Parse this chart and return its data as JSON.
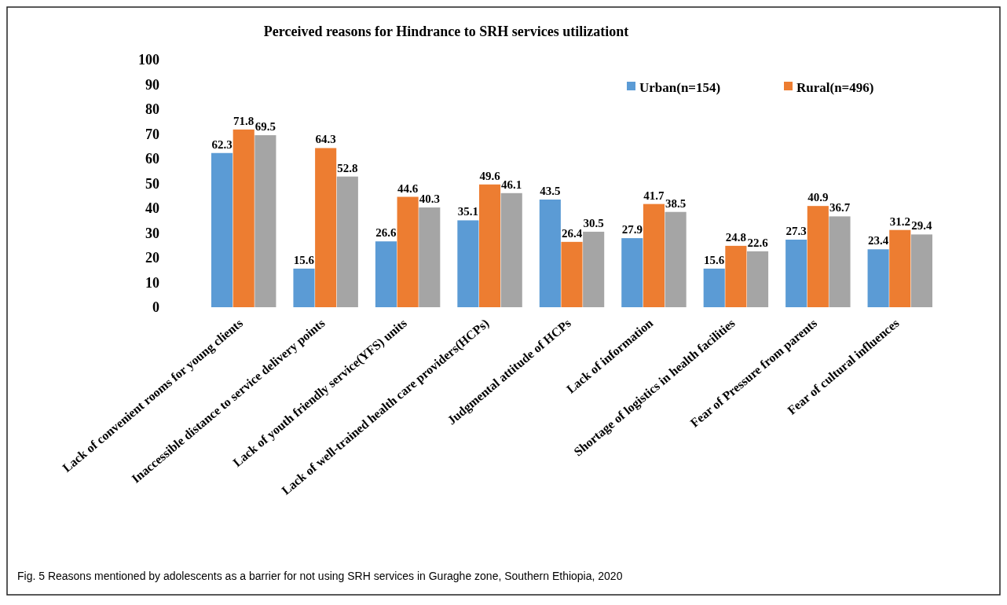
{
  "chart_data": {
    "type": "bar",
    "title": "Perceived reasons for Hindrance  to  SRH services utilizationt",
    "categories": [
      "Lack of convenient rooms for young clients",
      "Inaccessible distance to service delivery points",
      "Lack  of youth friendly service(YFS) units",
      "Lack of well-trained health care providers(HCPs)",
      "Judgmental attitude of HCPs",
      "Lack of information",
      "Shortage of logistics in health facilities",
      "Fear of Pressure from parents",
      "Fear of cultural  influences"
    ],
    "series": [
      {
        "name": "Urban(n=154)",
        "color": "#5b9bd5",
        "values": [
          62.3,
          15.6,
          26.6,
          35.1,
          43.5,
          27.9,
          15.6,
          27.3,
          23.4
        ]
      },
      {
        "name": "Rural(n=496)",
        "color": "#ed7d31",
        "values": [
          71.8,
          64.3,
          44.6,
          49.6,
          26.4,
          41.7,
          24.8,
          40.9,
          31.2
        ]
      },
      {
        "color": "#a5a5a5",
        "values": [
          69.5,
          52.8,
          40.3,
          46.1,
          30.5,
          38.5,
          22.6,
          36.7,
          29.4
        ]
      }
    ],
    "ylim": [
      0,
      100
    ],
    "yticks": [
      0,
      10,
      20,
      30,
      40,
      50,
      60,
      70,
      80,
      90,
      100
    ],
    "data_labels": true,
    "legend": "top right",
    "annotations": [
      "Fig. 5  Reasons mentioned by adolescents as a barrier for not using SRH services in Guraghe zone, Southern Ethiopia, 2020"
    ]
  }
}
